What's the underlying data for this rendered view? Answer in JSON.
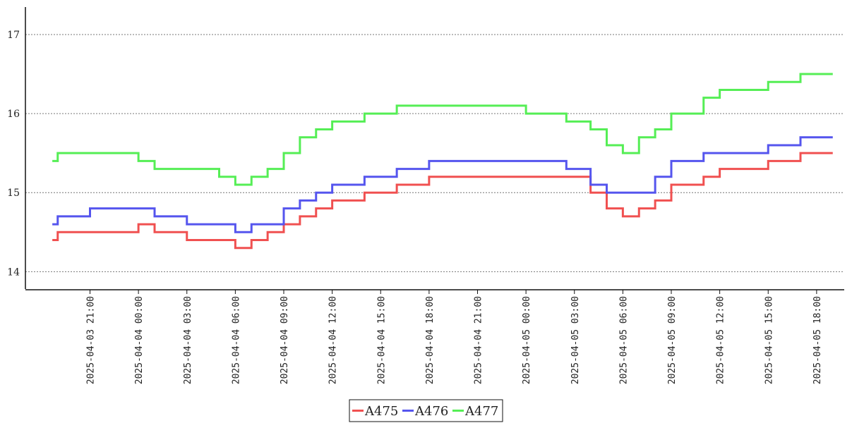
{
  "chart_data": {
    "type": "line",
    "step": true,
    "x": [
      "2025-04-03 18:40",
      "2025-04-03 19:00",
      "2025-04-03 21:00",
      "2025-04-04 00:00",
      "2025-04-04 01:00",
      "2025-04-04 03:00",
      "2025-04-04 05:00",
      "2025-04-04 06:00",
      "2025-04-04 07:00",
      "2025-04-04 08:00",
      "2025-04-04 09:00",
      "2025-04-04 10:00",
      "2025-04-04 11:00",
      "2025-04-04 12:00",
      "2025-04-04 14:00",
      "2025-04-04 16:00",
      "2025-04-04 18:00",
      "2025-04-04 21:00",
      "2025-04-05 00:00",
      "2025-04-05 02:30",
      "2025-04-05 04:00",
      "2025-04-05 05:00",
      "2025-04-05 06:00",
      "2025-04-05 07:00",
      "2025-04-05 08:00",
      "2025-04-05 09:00",
      "2025-04-05 11:00",
      "2025-04-05 12:00",
      "2025-04-05 15:00",
      "2025-04-05 17:00",
      "2025-04-05 19:00"
    ],
    "series": [
      {
        "name": "A475",
        "color": "#f05050",
        "values": [
          14.4,
          14.5,
          14.5,
          14.6,
          14.5,
          14.4,
          14.4,
          14.3,
          14.4,
          14.5,
          14.6,
          14.7,
          14.8,
          14.9,
          15.0,
          15.1,
          15.2,
          15.2,
          15.2,
          15.2,
          15.0,
          14.8,
          14.7,
          14.8,
          14.9,
          15.1,
          15.2,
          15.3,
          15.4,
          15.5,
          15.5
        ]
      },
      {
        "name": "A476",
        "color": "#5555ee",
        "values": [
          14.6,
          14.7,
          14.8,
          14.8,
          14.7,
          14.6,
          14.6,
          14.5,
          14.6,
          14.6,
          14.8,
          14.9,
          15.0,
          15.1,
          15.2,
          15.3,
          15.4,
          15.4,
          15.4,
          15.3,
          15.1,
          15.0,
          15.0,
          15.0,
          15.2,
          15.4,
          15.5,
          15.5,
          15.6,
          15.7,
          15.7
        ]
      },
      {
        "name": "A477",
        "color": "#55ee55",
        "values": [
          15.4,
          15.5,
          15.5,
          15.4,
          15.3,
          15.3,
          15.2,
          15.1,
          15.2,
          15.3,
          15.5,
          15.7,
          15.8,
          15.9,
          16.0,
          16.1,
          16.1,
          16.1,
          16.0,
          15.9,
          15.8,
          15.6,
          15.5,
          15.7,
          15.8,
          16.0,
          16.2,
          16.3,
          16.4,
          16.5,
          16.5
        ]
      }
    ],
    "xticks": [
      "2025-04-03 21:00",
      "2025-04-04 00:00",
      "2025-04-04 03:00",
      "2025-04-04 06:00",
      "2025-04-04 09:00",
      "2025-04-04 12:00",
      "2025-04-04 15:00",
      "2025-04-04 18:00",
      "2025-04-04 21:00",
      "2025-04-05 00:00",
      "2025-04-05 03:00",
      "2025-04-05 06:00",
      "2025-04-05 09:00",
      "2025-04-05 12:00",
      "2025-04-05 15:00",
      "2025-04-05 18:00"
    ],
    "yticks": [
      14,
      15,
      16,
      17
    ],
    "ylim": [
      13.78,
      17.33
    ],
    "xlim": [
      "2025-04-03 17:00",
      "2025-04-05 19:40"
    ],
    "grid": "horizontal-dotted",
    "legend": "bottom-center",
    "title": "",
    "xlabel": "",
    "ylabel": ""
  }
}
